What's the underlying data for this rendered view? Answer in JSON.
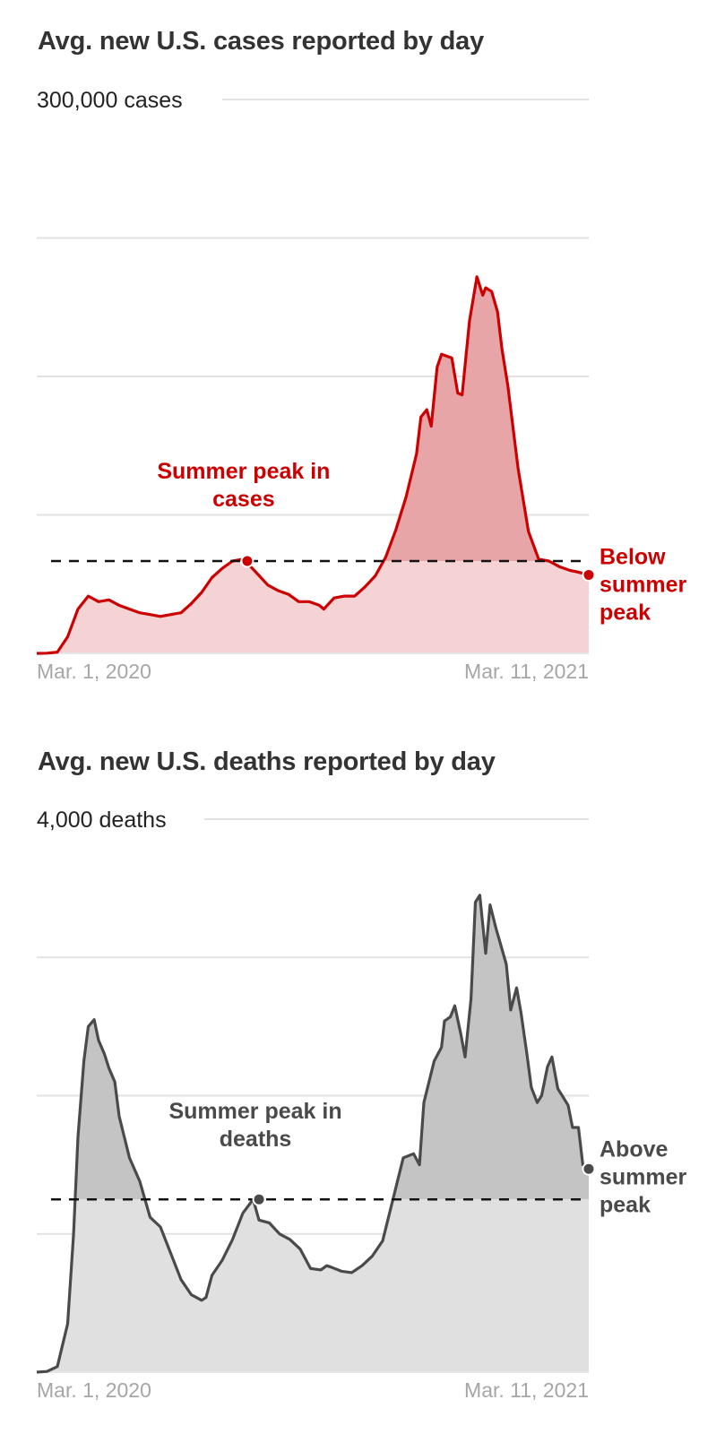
{
  "chart_data": [
    {
      "type": "area",
      "title": "Avg. new U.S. cases reported by day",
      "ytop_label": "300,000 cases",
      "ylim": [
        0,
        300000
      ],
      "gridlines": [
        75000,
        150000,
        225000,
        300000
      ],
      "x_tick_labels": [
        "Mar. 1, 2020",
        "Mar. 11, 2021"
      ],
      "xlim": [
        "2020-03-01",
        "2021-03-11"
      ],
      "color": "#cc0000",
      "fill_above": "#e8a5a8",
      "fill_below": "#f5d2d3",
      "reference_line": {
        "value": 50000,
        "style": "dashed"
      },
      "annotations": [
        {
          "text": "Summer peak in cases",
          "lines": [
            "Summer peak in",
            "cases"
          ],
          "x": "2020-07-22",
          "y": 50000
        },
        {
          "text": "Below summer peak",
          "lines": [
            "Below",
            "summer",
            "peak"
          ],
          "x": "2021-03-11",
          "y": 42500
        }
      ],
      "series": [
        {
          "x": [
            "2020-03-01",
            "2020-03-08",
            "2020-03-15",
            "2020-03-22",
            "2020-03-29",
            "2020-04-05",
            "2020-04-12",
            "2020-04-19",
            "2020-04-26",
            "2020-05-03",
            "2020-05-10",
            "2020-05-17",
            "2020-05-24",
            "2020-05-31",
            "2020-06-07",
            "2020-06-14",
            "2020-06-21",
            "2020-06-28",
            "2020-07-05",
            "2020-07-12",
            "2020-07-19",
            "2020-07-22",
            "2020-07-29",
            "2020-08-05",
            "2020-08-12",
            "2020-08-19",
            "2020-08-26",
            "2020-09-02",
            "2020-09-09",
            "2020-09-12",
            "2020-09-19",
            "2020-09-26",
            "2020-10-03",
            "2020-10-10",
            "2020-10-17",
            "2020-10-24",
            "2020-10-31",
            "2020-11-07",
            "2020-11-14",
            "2020-11-17",
            "2020-11-21",
            "2020-11-24",
            "2020-11-28",
            "2020-12-01",
            "2020-12-08",
            "2020-12-12",
            "2020-12-15",
            "2020-12-20",
            "2020-12-25",
            "2020-12-29",
            "2020-12-31",
            "2021-01-04",
            "2021-01-08",
            "2021-01-11",
            "2021-01-15",
            "2021-01-22",
            "2021-01-29",
            "2021-02-05",
            "2021-02-12",
            "2021-02-19",
            "2021-02-26",
            "2021-03-04",
            "2021-03-11"
          ],
          "values": [
            0,
            100,
            700,
            9000,
            24000,
            31000,
            28000,
            29000,
            26000,
            24000,
            22000,
            21000,
            20000,
            21000,
            22000,
            27000,
            33000,
            41000,
            46000,
            50000,
            51000,
            49000,
            43000,
            37000,
            34000,
            32000,
            28000,
            28000,
            26000,
            24000,
            30000,
            31000,
            31000,
            36000,
            42000,
            52000,
            67000,
            85000,
            108000,
            128000,
            132000,
            123000,
            155000,
            162000,
            160000,
            141000,
            140000,
            180000,
            204000,
            194000,
            198000,
            196000,
            185000,
            165000,
            145000,
            100000,
            66000,
            51000,
            50000,
            47000,
            45000,
            44000,
            42500
          ]
        }
      ]
    },
    {
      "type": "area",
      "title": "Avg. new U.S. deaths reported by day",
      "ytop_label": "4,000 deaths",
      "ylim": [
        0,
        4000
      ],
      "gridlines": [
        1000,
        2000,
        3000,
        4000
      ],
      "x_tick_labels": [
        "Mar. 1, 2020",
        "Mar. 11, 2021"
      ],
      "xlim": [
        "2020-03-01",
        "2021-03-11"
      ],
      "color": "#4a4a4a",
      "fill_above": "#c4c4c4",
      "fill_below": "#e0e0e0",
      "reference_line": {
        "value": 1250,
        "style": "dashed"
      },
      "annotations": [
        {
          "text": "Summer peak in deaths",
          "lines": [
            "Summer peak in",
            "deaths"
          ],
          "x": "2020-07-30",
          "y": 1250
        },
        {
          "text": "Above summer peak",
          "lines": [
            "Above",
            "summer",
            "peak"
          ],
          "x": "2021-03-11",
          "y": 1470
        }
      ],
      "series": [
        {
          "x": [
            "2020-03-01",
            "2020-03-08",
            "2020-03-15",
            "2020-03-22",
            "2020-03-26",
            "2020-03-29",
            "2020-04-02",
            "2020-04-05",
            "2020-04-09",
            "2020-04-12",
            "2020-04-16",
            "2020-04-19",
            "2020-04-23",
            "2020-04-26",
            "2020-05-03",
            "2020-05-10",
            "2020-05-17",
            "2020-05-24",
            "2020-05-31",
            "2020-06-07",
            "2020-06-14",
            "2020-06-21",
            "2020-06-24",
            "2020-06-28",
            "2020-07-05",
            "2020-07-12",
            "2020-07-19",
            "2020-07-26",
            "2020-07-30",
            "2020-08-06",
            "2020-08-13",
            "2020-08-20",
            "2020-08-27",
            "2020-09-03",
            "2020-09-10",
            "2020-09-14",
            "2020-09-17",
            "2020-09-24",
            "2020-10-01",
            "2020-10-08",
            "2020-10-15",
            "2020-10-22",
            "2020-10-29",
            "2020-11-05",
            "2020-11-12",
            "2020-11-16",
            "2020-11-19",
            "2020-11-26",
            "2020-12-01",
            "2020-12-03",
            "2020-12-07",
            "2020-12-10",
            "2020-12-14",
            "2020-12-17",
            "2020-12-21",
            "2020-12-24",
            "2020-12-27",
            "2020-12-31",
            "2021-01-03",
            "2021-01-07",
            "2021-01-10",
            "2021-01-14",
            "2021-01-17",
            "2021-01-21",
            "2021-01-24",
            "2021-01-28",
            "2021-01-31",
            "2021-02-04",
            "2021-02-07",
            "2021-02-11",
            "2021-02-14",
            "2021-02-18",
            "2021-02-21",
            "2021-02-25",
            "2021-02-28",
            "2021-03-04",
            "2021-03-07",
            "2021-03-11"
          ],
          "values": [
            0,
            5,
            40,
            350,
            1000,
            1700,
            2250,
            2500,
            2550,
            2400,
            2300,
            2200,
            2100,
            1850,
            1550,
            1380,
            1120,
            1050,
            860,
            670,
            560,
            520,
            540,
            700,
            810,
            960,
            1150,
            1250,
            1100,
            1080,
            1000,
            960,
            890,
            750,
            740,
            770,
            760,
            730,
            720,
            770,
            840,
            950,
            1250,
            1550,
            1580,
            1500,
            1950,
            2250,
            2350,
            2540,
            2570,
            2650,
            2450,
            2280,
            2700,
            3400,
            3450,
            3030,
            3380,
            3210,
            3100,
            2950,
            2620,
            2780,
            2600,
            2300,
            2060,
            1950,
            2000,
            2210,
            2280,
            2050,
            2000,
            1930,
            1770,
            1770,
            1500,
            1470
          ]
        }
      ]
    }
  ]
}
